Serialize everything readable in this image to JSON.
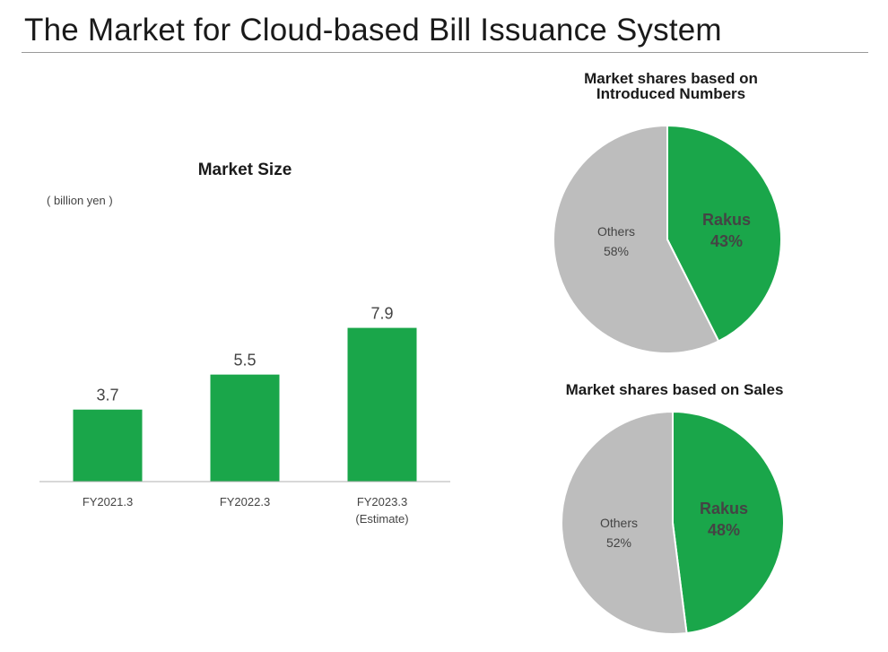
{
  "page": {
    "title": "The Market for Cloud-based Bill Issuance System"
  },
  "colors": {
    "accent": "#1aa64a",
    "others": "#bdbdbd",
    "axis": "#b0b0b0"
  },
  "chart_data": [
    {
      "type": "bar",
      "title": "Market Size",
      "ylabel": "( billion yen )",
      "categories": [
        "FY2021.3",
        "FY2022.3",
        "FY2023.3"
      ],
      "category_notes": [
        "",
        "",
        "(Estimate)"
      ],
      "values": [
        3.7,
        5.5,
        7.9
      ],
      "value_labels": [
        "3.7",
        "5.5",
        "7.9"
      ],
      "ylim": [
        0,
        10.6
      ],
      "grid": false
    },
    {
      "type": "pie",
      "title_lines": [
        "Market shares based on",
        "Introduced Numbers"
      ],
      "slices": [
        {
          "label": "Rakus",
          "value": 43,
          "value_label": "43%",
          "color": "#1aa64a"
        },
        {
          "label": "Others",
          "value": 58,
          "value_label": "58%",
          "color": "#bdbdbd"
        }
      ]
    },
    {
      "type": "pie",
      "title_lines": [
        "Market shares based on Sales"
      ],
      "slices": [
        {
          "label": "Rakus",
          "value": 48,
          "value_label": "48%",
          "color": "#1aa64a"
        },
        {
          "label": "Others",
          "value": 52,
          "value_label": "52%",
          "color": "#bdbdbd"
        }
      ]
    }
  ]
}
